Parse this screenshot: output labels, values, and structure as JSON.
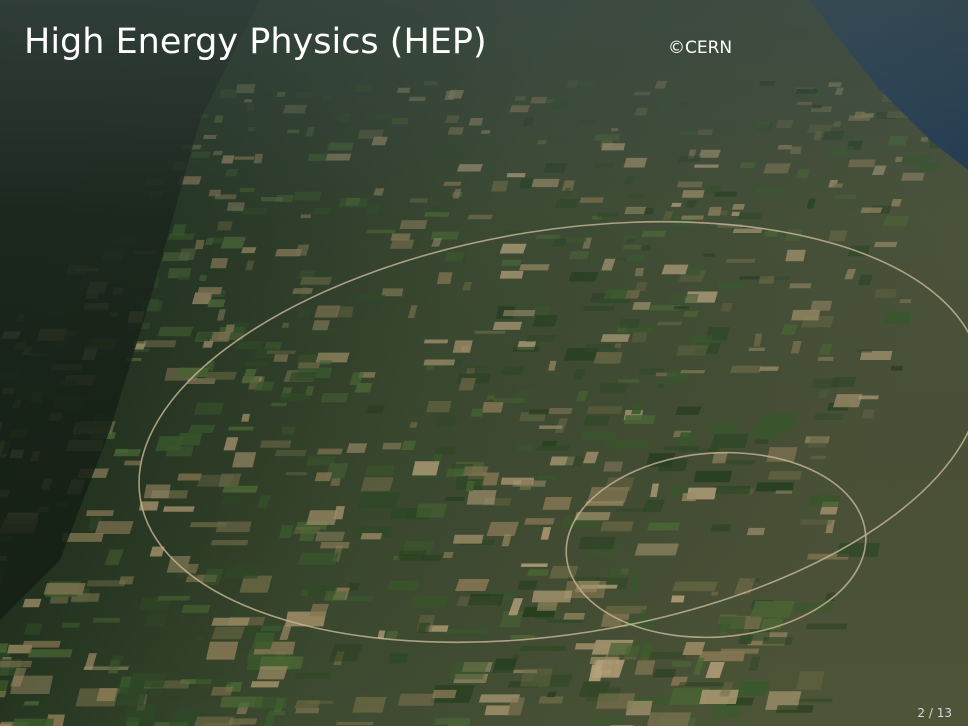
{
  "slide": {
    "title": "High Energy Physics (HEP)",
    "credit": "©CERN",
    "page_number": "2 / 13"
  }
}
